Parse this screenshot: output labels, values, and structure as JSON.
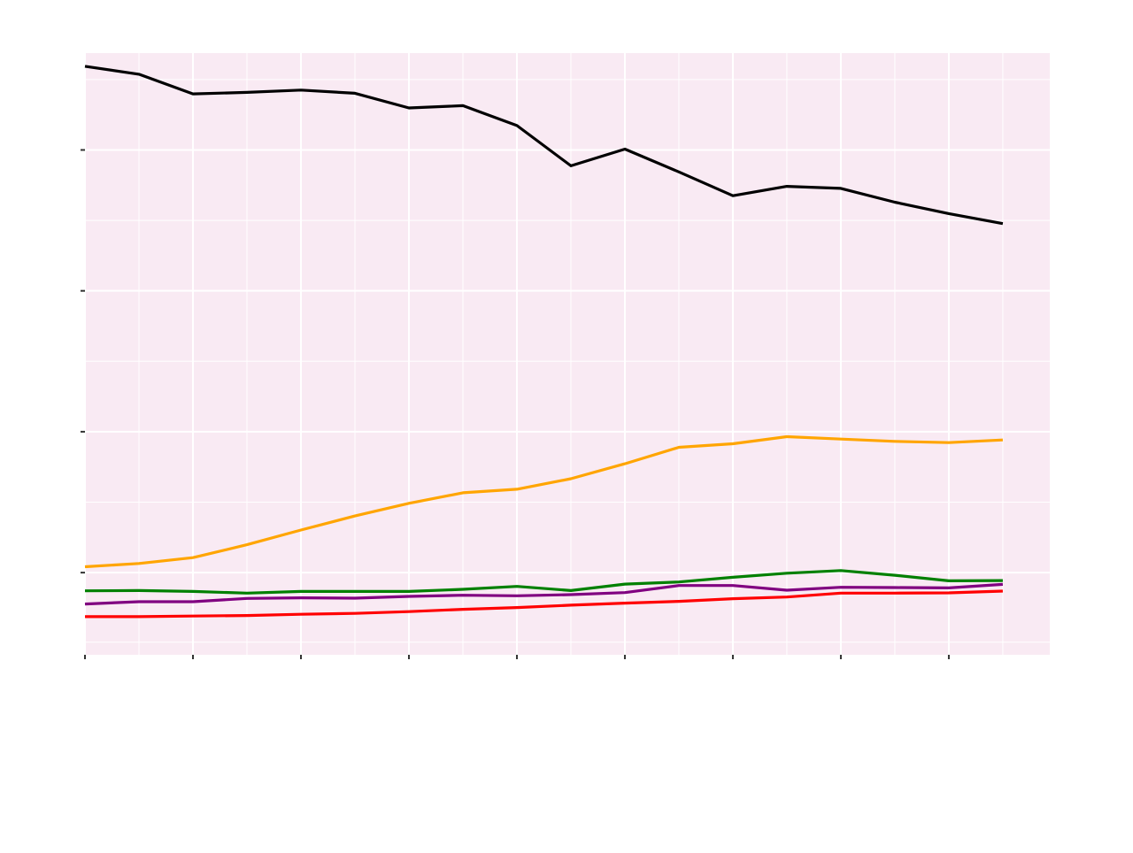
{
  "chart_data": {
    "type": "line",
    "title": "",
    "xlabel": "",
    "ylabel": "",
    "x": [
      1,
      2,
      3,
      4,
      5,
      6,
      7,
      8,
      9,
      10,
      11,
      12,
      13,
      14,
      15,
      16,
      17,
      18
    ],
    "xlim": [
      1,
      18.87
    ],
    "ylim": [
      -0.3,
      20.2
    ],
    "x_major_ticks": [
      1,
      3,
      5,
      7,
      9,
      11,
      13,
      15,
      17
    ],
    "x_minor_gridlines": [
      2,
      4,
      6,
      8,
      10,
      12,
      14,
      16,
      18
    ],
    "y_major_ticks": [
      2.5,
      7.3,
      12.1,
      16.9
    ],
    "y_minor_gridlines": [
      0.13,
      4.9,
      9.7,
      14.5,
      19.3
    ],
    "tick_labels_visible": false,
    "grid": true,
    "legend": "none",
    "series": [
      {
        "color": "#000000",
        "values": [
          19.75,
          19.48,
          18.81,
          18.86,
          18.94,
          18.83,
          18.33,
          18.41,
          17.73,
          16.36,
          16.93,
          16.15,
          15.34,
          15.66,
          15.59,
          15.12,
          14.73,
          14.39
        ]
      },
      {
        "color": "#FFA500",
        "values": [
          2.7,
          2.81,
          3.01,
          3.45,
          3.95,
          4.43,
          4.86,
          5.22,
          5.34,
          5.7,
          6.21,
          6.77,
          6.89,
          7.13,
          7.05,
          6.97,
          6.93,
          7.02
        ]
      },
      {
        "color": "#008000",
        "values": [
          1.88,
          1.89,
          1.86,
          1.8,
          1.86,
          1.86,
          1.86,
          1.93,
          2.03,
          1.89,
          2.11,
          2.18,
          2.34,
          2.48,
          2.57,
          2.41,
          2.22,
          2.23
        ]
      },
      {
        "color": "#800080",
        "values": [
          1.43,
          1.51,
          1.51,
          1.62,
          1.64,
          1.63,
          1.69,
          1.73,
          1.71,
          1.75,
          1.82,
          2.06,
          2.06,
          1.9,
          2.0,
          1.99,
          1.98,
          2.1
        ]
      },
      {
        "color": "#FF0000",
        "values": [
          1.0,
          1.0,
          1.02,
          1.04,
          1.08,
          1.11,
          1.17,
          1.25,
          1.31,
          1.39,
          1.46,
          1.52,
          1.61,
          1.67,
          1.8,
          1.8,
          1.81,
          1.87
        ]
      }
    ]
  },
  "colors": {
    "panel_background": "#F9EAF3",
    "gridline": "#FFFFFF",
    "page_background": "#FFFFFF",
    "tick": "#333333"
  }
}
